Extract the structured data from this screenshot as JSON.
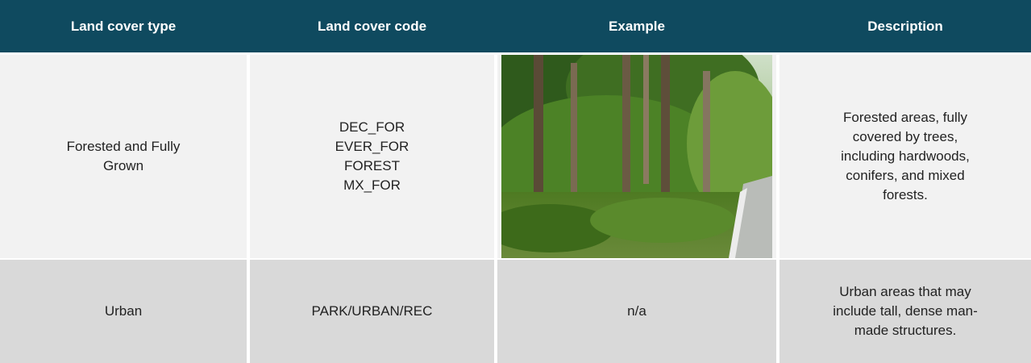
{
  "table": {
    "header": [
      "Land cover type",
      "Land cover code",
      "Example",
      "Description"
    ],
    "rows": [
      {
        "type": "Forested and Fully Grown",
        "codes": [
          "DEC_FOR",
          "EVER_FOR",
          "FOREST",
          "MX_FOR"
        ],
        "description": "Forested areas, fully covered by trees, including hardwoods, conifers, and mixed forests."
      },
      {
        "type": "Urban",
        "codes": [
          "PARK/URBAN/REC"
        ],
        "example": "n/a",
        "description": "Urban areas that may include tall, dense man-made structures."
      }
    ]
  }
}
